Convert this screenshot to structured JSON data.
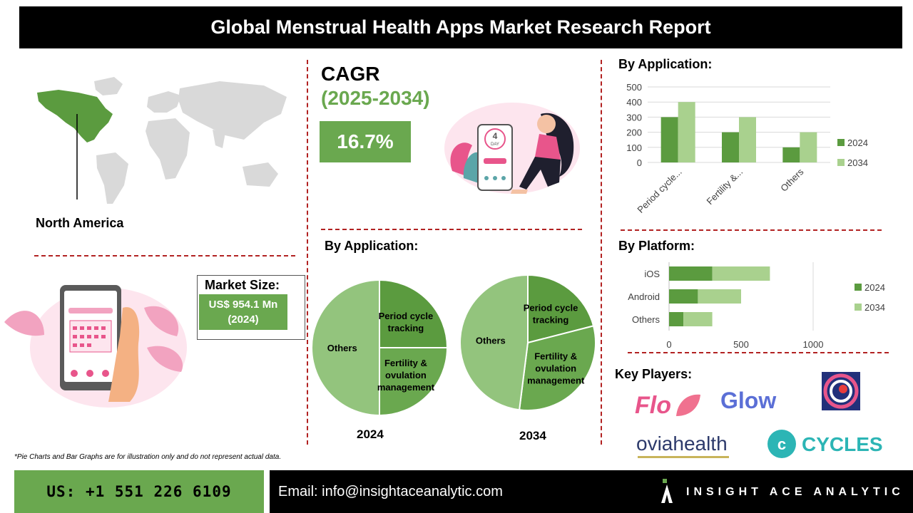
{
  "header": {
    "title": "Global Menstrual Health Apps Market Research Report"
  },
  "region": {
    "label": "North America",
    "highlight_color": "#5b9b3f"
  },
  "cagr": {
    "title": "CAGR",
    "years": "(2025-2034)",
    "value": "16.7%"
  },
  "market_size": {
    "label": "Market Size:",
    "value_line1": "US$ 954.1 Mn",
    "value_line2": "(2024)"
  },
  "sections": {
    "bar_application_title": "By Application:",
    "pie_application_title": "By Application:",
    "platform_title": "By Platform:",
    "key_players_title": "Key Players:"
  },
  "chart_data": [
    {
      "type": "bar",
      "title": "By Application:",
      "categories": [
        "Period cycle...",
        "Fertility &...",
        "Others"
      ],
      "series": [
        {
          "name": "2024",
          "values": [
            300,
            200,
            100
          ],
          "color": "#5b9b3f"
        },
        {
          "name": "2034",
          "values": [
            400,
            300,
            200
          ],
          "color": "#a9d18e"
        }
      ],
      "ylim": [
        0,
        500
      ],
      "yticks": [
        "0",
        "100",
        "200",
        "300",
        "400",
        "500"
      ],
      "grid": true,
      "legend": "right"
    },
    {
      "type": "bar",
      "orientation": "horizontal-stacked",
      "title": "By Platform:",
      "categories": [
        "iOS",
        "Android",
        "Others"
      ],
      "series": [
        {
          "name": "2024",
          "values": [
            300,
            200,
            100
          ],
          "color": "#5b9b3f"
        },
        {
          "name": "2034",
          "values": [
            400,
            300,
            200
          ],
          "color": "#a9d18e"
        }
      ],
      "xlim": [
        0,
        1000
      ],
      "xticks": [
        "0",
        "500",
        "1000"
      ],
      "legend": "right"
    },
    {
      "type": "pie",
      "year": "2024",
      "slices": [
        {
          "label": "Period cycle tracking",
          "value": 25,
          "color": "#5b9b3f"
        },
        {
          "label": "Fertility & ovulation management",
          "value": 25,
          "color": "#6aa84f"
        },
        {
          "label": "Others",
          "value": 50,
          "color": "#93c47d"
        }
      ]
    },
    {
      "type": "pie",
      "year": "2034",
      "slices": [
        {
          "label": "Period cycle tracking",
          "value": 21,
          "color": "#5b9b3f"
        },
        {
          "label": "Fertility & ovulation management",
          "value": 31,
          "color": "#6aa84f"
        },
        {
          "label": "Others",
          "value": 48,
          "color": "#93c47d"
        }
      ]
    }
  ],
  "key_players": {
    "flo": "Flo",
    "glow": "Glow",
    "ovia": "oviahealth",
    "cycles": "CYCLES"
  },
  "footer": {
    "note": "*Pie Charts and Bar Graphs are for illustration only and do not represent actual data.",
    "phone": "US: +1 551 226 6109",
    "email": "Email: info@insightaceanalytic.com",
    "brand": "INSIGHT ACE ANALYTIC"
  },
  "illustration": {
    "calendar_day_number": "4",
    "calendar_day_label": "DAY"
  }
}
